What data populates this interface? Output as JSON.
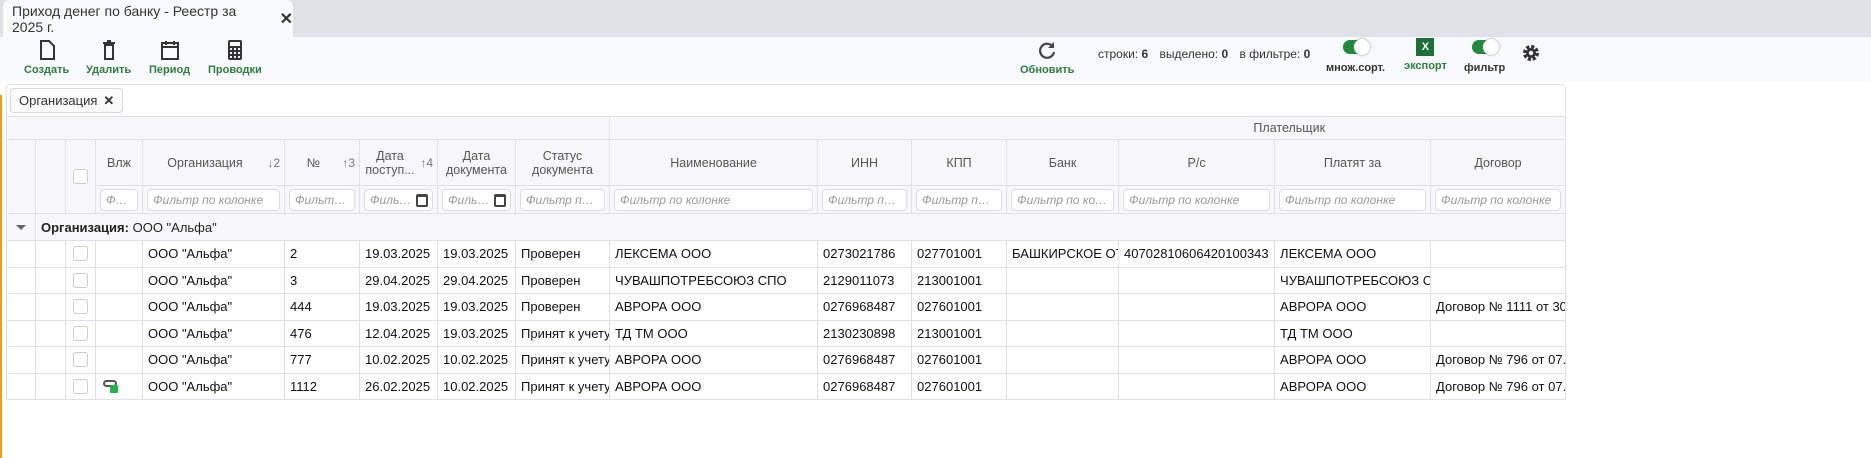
{
  "tab": {
    "title": "Приход денег по банку - Реестр за 2025 г.",
    "close": "✕"
  },
  "toolbar": {
    "create": "Создать",
    "delete": "Удалить",
    "period": "Период",
    "entries": "Проводки",
    "refresh": "Обновить",
    "stats": {
      "rows_label": "строки:",
      "rows": "6",
      "selected_label": "выделено:",
      "selected": "0",
      "filtered_label": "в фильтре:",
      "filtered": "0"
    },
    "multisort": "множ.сорт.",
    "multisort_on": true,
    "export": "экспорт",
    "export_icon": "X",
    "filter": "фильтр",
    "filter_on": true
  },
  "colors": {
    "accent": "#2e7d43",
    "toggle": "#1f8a3b",
    "excel": "#1d6f3a",
    "left_bar": "#f39c12"
  },
  "grouping": {
    "chip": "Организация",
    "chip_close": "✕"
  },
  "table": {
    "group_header": "Плательщик",
    "columns": [
      {
        "label": "Влж",
        "filter": "Фильтр по колонке"
      },
      {
        "label": "Организация",
        "sort": "↓2",
        "filter": "Фильтр по колонке"
      },
      {
        "label": "№",
        "sort": "↑3",
        "filter": "Фильтр по колонке"
      },
      {
        "label": "Дата поступ...",
        "sort": "↑4",
        "filter": "Фильтр по колонке"
      },
      {
        "label": "Дата документа",
        "filter": "Фильтр по колонке"
      },
      {
        "label": "Статус документа",
        "filter": "Фильтр по колонке"
      },
      {
        "label": "Наименование",
        "filter": "Фильтр по колонке"
      },
      {
        "label": "ИНН",
        "filter": "Фильтр по колонке"
      },
      {
        "label": "КПП",
        "filter": "Фильтр по колонке"
      },
      {
        "label": "Банк",
        "filter": "Фильтр по колонке"
      },
      {
        "label": "Р/с",
        "filter": "Фильтр по колонке"
      },
      {
        "label": "Платят за",
        "filter": "Фильтр по колонке"
      },
      {
        "label": "Договор",
        "filter": "Фильтр по колонке"
      }
    ],
    "group_row": {
      "label": "Организация:",
      "value": "ООО \"Альфа\""
    },
    "rows": [
      {
        "att": false,
        "org": "ООО \"Альфа\"",
        "num": "2",
        "date_in": "19.03.2025",
        "date_doc": "19.03.2025",
        "status": "Проверен",
        "name": "ЛЕКСЕМА ООО",
        "inn": "0273021786",
        "kpp": "027701001",
        "bank": "БАШКИРСКОЕ ОТДЕЛЕНИЕ",
        "account": "40702810606420100343",
        "pay_for": "ЛЕКСЕМА ООО",
        "contract": ""
      },
      {
        "att": false,
        "org": "ООО \"Альфа\"",
        "num": "3",
        "date_in": "29.04.2025",
        "date_doc": "29.04.2025",
        "status": "Проверен",
        "name": "ЧУВАШПОТРЕБСОЮЗ СПО",
        "inn": "2129011073",
        "kpp": "213001001",
        "bank": "",
        "account": "",
        "pay_for": "ЧУВАШПОТРЕБСОЮЗ СПО",
        "contract": ""
      },
      {
        "att": false,
        "org": "ООО \"Альфа\"",
        "num": "444",
        "date_in": "19.03.2025",
        "date_doc": "19.03.2025",
        "status": "Проверен",
        "name": "АВРОРА ООО",
        "inn": "0276968487",
        "kpp": "027601001",
        "bank": "",
        "account": "",
        "pay_for": "АВРОРА ООО",
        "contract": "Договор № 1111 от 30"
      },
      {
        "att": false,
        "org": "ООО \"Альфа\"",
        "num": "476",
        "date_in": "12.04.2025",
        "date_doc": "19.03.2025",
        "status": "Принят к учету",
        "name": "ТД ТМ ООО",
        "inn": "2130230898",
        "kpp": "213001001",
        "bank": "",
        "account": "",
        "pay_for": "ТД ТМ ООО",
        "contract": ""
      },
      {
        "att": false,
        "org": "ООО \"Альфа\"",
        "num": "777",
        "date_in": "10.02.2025",
        "date_doc": "10.02.2025",
        "status": "Принят к учету",
        "name": "АВРОРА ООО",
        "inn": "0276968487",
        "kpp": "027601001",
        "bank": "",
        "account": "",
        "pay_for": "АВРОРА ООО",
        "contract": "Договор № 796 от 07."
      },
      {
        "att": true,
        "org": "ООО \"Альфа\"",
        "num": "1112",
        "date_in": "26.02.2025",
        "date_doc": "10.02.2025",
        "status": "Принят к учету",
        "name": "АВРОРА ООО",
        "inn": "0276968487",
        "kpp": "027601001",
        "bank": "",
        "account": "",
        "pay_for": "АВРОРА ООО",
        "contract": "Договор № 796 от 07."
      }
    ]
  }
}
